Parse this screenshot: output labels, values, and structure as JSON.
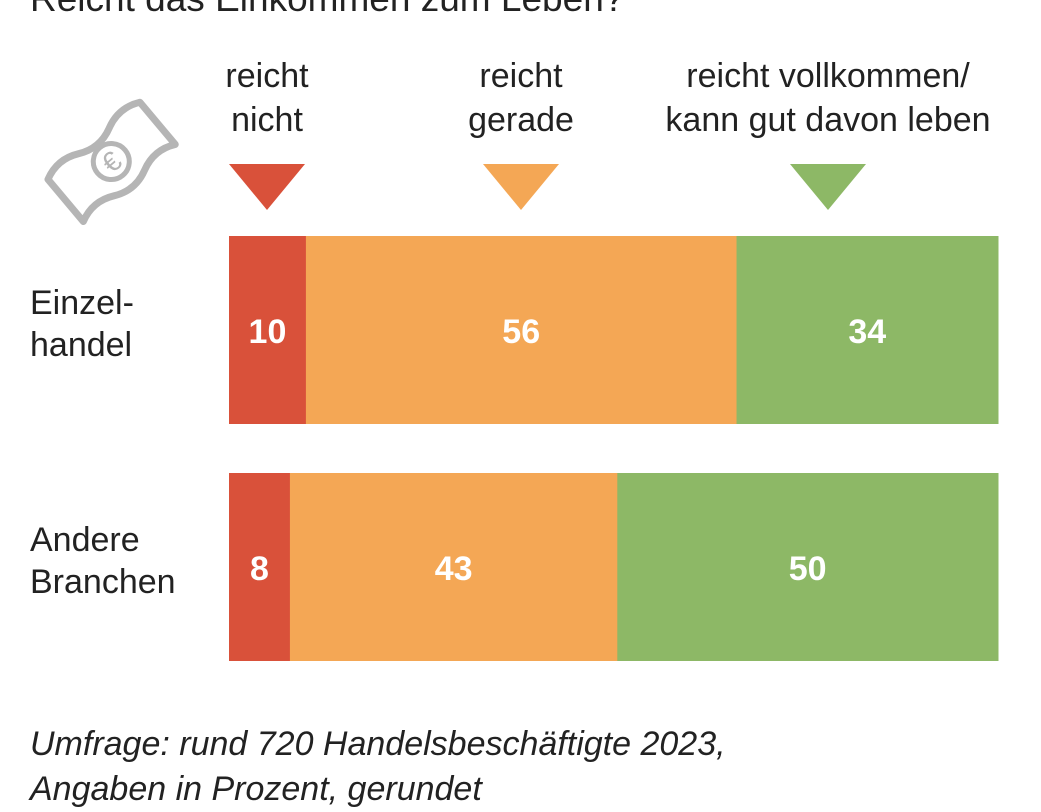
{
  "chart_data": {
    "type": "bar",
    "orientation": "horizontal-stacked",
    "title": "Reicht das Einkommen zum Leben?",
    "categories": [
      "Einzel-\nhandel",
      "Andere\nBranchen"
    ],
    "category_lines": [
      [
        "Einzel-",
        "handel"
      ],
      [
        "Andere",
        "Branchen"
      ]
    ],
    "series": [
      {
        "name": "reicht nicht",
        "name_lines": [
          "reicht",
          "nicht"
        ],
        "color": "#d9513a",
        "values": [
          10,
          8
        ]
      },
      {
        "name": "reicht gerade",
        "name_lines": [
          "reicht",
          "gerade"
        ],
        "color": "#f4a755",
        "values": [
          56,
          43
        ]
      },
      {
        "name": "reicht vollkommen/ kann gut davon leben",
        "name_lines": [
          "reicht vollkommen/",
          "kann gut davon leben"
        ],
        "color": "#8db866",
        "values": [
          34,
          50
        ]
      }
    ],
    "xlim": [
      0,
      100
    ],
    "grid": false,
    "legend": "top",
    "note_lines": [
      "Umfrage: rund 720 Handelsbeschäftigte 2023,",
      "Angaben in Prozent, gerundet"
    ]
  },
  "icon": "euro-banknote-icon"
}
